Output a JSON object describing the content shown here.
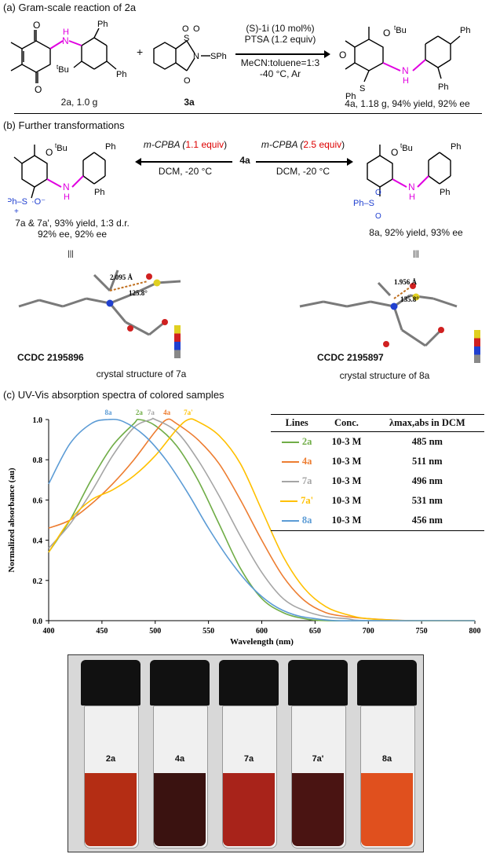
{
  "sectionA": {
    "title": "(a) Gram-scale reaction of 2a",
    "reactant1_label": "2a, 1.0 g",
    "reactant2_label": "3a",
    "plus": "+",
    "conditions": [
      "(S)-1i (10 mol%)",
      "PTSA (1.2 equiv)",
      "MeCN:toluene=1:3",
      "-40 °C, Ar"
    ],
    "product_label": "4a, 1.18 g, 94% yield, 92% ee",
    "atoms": {
      "ph": "Ph",
      "tbu": "tBu",
      "nh": "N",
      "h": "H",
      "sph": "SPh",
      "s": "S",
      "n": "N",
      "o": "O"
    }
  },
  "sectionB": {
    "title": "(b) Further transformations",
    "left_cond_reagent": "m-CPBA (",
    "left_cond_equiv": "1.1 equiv",
    "left_cond_close": ")",
    "right_cond_reagent": "m-CPBA (",
    "right_cond_equiv": "2.5 equiv",
    "right_cond_close": ")",
    "solvent": "DCM, -20 °C",
    "center_label": "4a",
    "product_left_line1": "7a & 7a', 93% yield, 1:3 d.r.",
    "product_left_line2": "92% ee, 92% ee",
    "product_right_line1": "8a, 92% yield, 93% ee",
    "equiv_sign": "|||",
    "ccdc_left": "CCDC 2195896",
    "ccdc_right": "CCDC 2195897",
    "crystal_left": "crystal structure of 7a",
    "crystal_right": "crystal structure of 8a",
    "dist_left": "2.095 Å",
    "angle_left": "125.8°",
    "dist_right": "1.956 Å",
    "angle_right": "135.8°",
    "atoms": {
      "phs": "Ph–S",
      "o_minus": "O",
      "plus": "+",
      "phso2": "Ph–S",
      "nh": "N",
      "h": "H"
    }
  },
  "sectionC": {
    "title": "(c) UV-Vis absorption spectra of colored samples",
    "table": {
      "headers": [
        "Lines",
        "Conc.",
        "λmax,abs in DCM"
      ],
      "rows": [
        {
          "name": "2a",
          "color": "#70ad47",
          "conc": "10-3 M",
          "lambda": "485 nm"
        },
        {
          "name": "4a",
          "color": "#ed7d31",
          "conc": "10-3 M",
          "lambda": "511 nm"
        },
        {
          "name": "7a",
          "color": "#a5a5a5",
          "conc": "10-3 M",
          "lambda": "496 nm"
        },
        {
          "name": "7a'",
          "color": "#ffc000",
          "conc": "10-3 M",
          "lambda": "531 nm"
        },
        {
          "name": "8a",
          "color": "#5b9bd5",
          "conc": "10-3 M",
          "lambda": "456 nm"
        }
      ]
    }
  },
  "photo": {
    "vial_labels": [
      "2a",
      "4a",
      "7a",
      "7a'",
      "8a"
    ],
    "liquid_colors": [
      "#b42d14",
      "#3a1210",
      "#a8231a",
      "#4a1412",
      "#e0501e"
    ]
  },
  "chart_data": {
    "type": "line",
    "title": "",
    "xlabel": "Wavelength (nm)",
    "ylabel": "Normalized absorbance (au)",
    "xlim": [
      400,
      800
    ],
    "ylim": [
      0.0,
      1.0
    ],
    "xticks": [
      400,
      450,
      500,
      550,
      600,
      650,
      700,
      750,
      800
    ],
    "yticks": [
      0.0,
      0.2,
      0.4,
      0.6,
      0.8,
      1.0
    ],
    "grid": false,
    "peak_labels": [
      "8a",
      "2a",
      "7a",
      "4a",
      "7a'"
    ],
    "series": [
      {
        "name": "2a",
        "color": "#70ad47",
        "x": [
          400,
          420,
          440,
          460,
          480,
          485,
          500,
          520,
          540,
          560,
          580,
          600,
          620,
          640,
          660,
          700,
          800
        ],
        "y": [
          0.34,
          0.5,
          0.7,
          0.87,
          0.98,
          1.0,
          0.97,
          0.87,
          0.7,
          0.48,
          0.26,
          0.11,
          0.04,
          0.01,
          0.0,
          0.0,
          0.0
        ]
      },
      {
        "name": "4a",
        "color": "#ed7d31",
        "x": [
          400,
          420,
          440,
          460,
          480,
          500,
          511,
          520,
          540,
          560,
          580,
          600,
          620,
          640,
          660,
          680,
          700,
          740,
          800
        ],
        "y": [
          0.46,
          0.5,
          0.58,
          0.68,
          0.8,
          0.94,
          1.0,
          0.98,
          0.9,
          0.78,
          0.6,
          0.4,
          0.22,
          0.1,
          0.04,
          0.02,
          0.01,
          0.0,
          0.0
        ]
      },
      {
        "name": "7a",
        "color": "#a5a5a5",
        "x": [
          400,
          420,
          440,
          460,
          480,
          496,
          500,
          520,
          540,
          560,
          580,
          600,
          620,
          640,
          660,
          680,
          700,
          800
        ],
        "y": [
          0.36,
          0.48,
          0.64,
          0.82,
          0.96,
          1.0,
          1.0,
          0.94,
          0.8,
          0.62,
          0.42,
          0.24,
          0.11,
          0.05,
          0.02,
          0.01,
          0.0,
          0.0
        ]
      },
      {
        "name": "7a'",
        "color": "#ffc000",
        "x": [
          400,
          420,
          440,
          460,
          480,
          500,
          520,
          531,
          540,
          560,
          580,
          600,
          620,
          640,
          660,
          680,
          700,
          740,
          800
        ],
        "y": [
          0.34,
          0.5,
          0.6,
          0.65,
          0.72,
          0.82,
          0.95,
          1.0,
          0.99,
          0.92,
          0.78,
          0.55,
          0.32,
          0.16,
          0.07,
          0.03,
          0.01,
          0.0,
          0.0
        ]
      },
      {
        "name": "8a",
        "color": "#5b9bd5",
        "x": [
          400,
          420,
          440,
          456,
          470,
          490,
          510,
          530,
          550,
          570,
          590,
          610,
          630,
          650,
          670,
          700,
          800
        ],
        "y": [
          0.68,
          0.88,
          0.98,
          1.0,
          0.99,
          0.92,
          0.8,
          0.64,
          0.46,
          0.3,
          0.17,
          0.08,
          0.03,
          0.01,
          0.0,
          0.0,
          0.0
        ]
      }
    ]
  }
}
